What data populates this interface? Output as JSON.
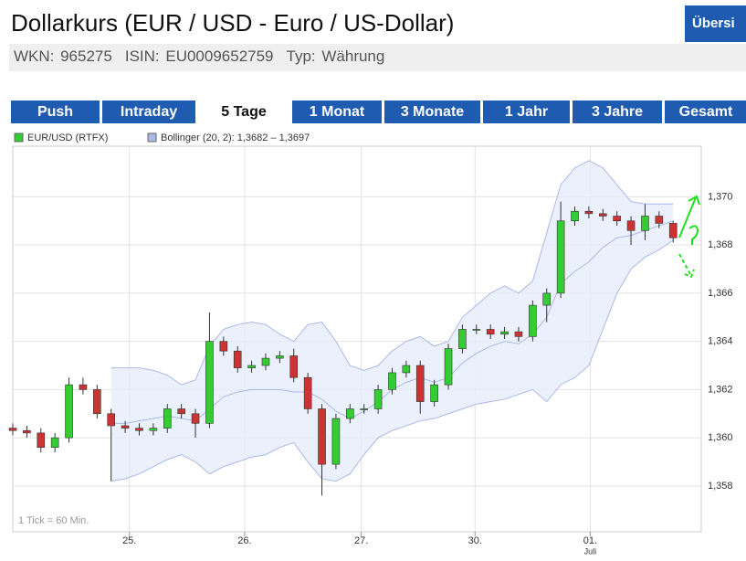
{
  "header": {
    "title": "Dollarkurs (EUR / USD - Euro / US-Dollar)",
    "button": "Übersi",
    "wkn": "WKN: 965275",
    "isin": "ISIN: EU0009652759",
    "typ": "Typ: Währung"
  },
  "tabs": [
    "Push",
    "Intraday",
    "5 Tage",
    "1 Monat",
    "3 Monate",
    "1 Jahr",
    "3 Jahre",
    "Gesamt"
  ],
  "active_tab": 2,
  "chart_data": {
    "type": "candlestick",
    "legend": [
      {
        "name": "EUR/USD (RTFX)",
        "color": "#33cc33"
      },
      {
        "name": "Bollinger (20, 2): 1,3682 – 1,3697",
        "color": "#aab8e8"
      }
    ],
    "note": "1 Tick = 60 Min.",
    "x": [
      0,
      1,
      2,
      3,
      4,
      5,
      6,
      7,
      8,
      9,
      10,
      11,
      12,
      13,
      14,
      15,
      16,
      17,
      18,
      19,
      20,
      21,
      22,
      23,
      24,
      25,
      26,
      27,
      28,
      29,
      30,
      31,
      32,
      33,
      34,
      35,
      36,
      37,
      38,
      39,
      40,
      41,
      42,
      43,
      44,
      45,
      46,
      47
    ],
    "open": [
      1.3604,
      1.3603,
      1.3602,
      1.3596,
      1.36,
      1.3622,
      1.362,
      1.361,
      1.3605,
      1.3604,
      1.3603,
      1.3604,
      1.3612,
      1.361,
      1.3606,
      1.364,
      1.3636,
      1.3629,
      1.363,
      1.3633,
      1.3634,
      1.3625,
      1.3612,
      1.3589,
      1.3608,
      1.3612,
      1.3612,
      1.362,
      1.3627,
      1.363,
      1.3615,
      1.3622,
      1.3637,
      1.3645,
      1.3645,
      1.3643,
      1.3644,
      1.3642,
      1.3655,
      1.366,
      1.369,
      1.3694,
      1.3693,
      1.3692,
      1.369,
      1.3686,
      1.3692,
      1.3689
    ],
    "high": [
      1.3606,
      1.3605,
      1.3604,
      1.3602,
      1.3625,
      1.3625,
      1.3622,
      1.3612,
      1.3607,
      1.3606,
      1.3606,
      1.3614,
      1.3614,
      1.3612,
      1.3652,
      1.3642,
      1.3638,
      1.3632,
      1.3635,
      1.3636,
      1.3637,
      1.3627,
      1.3614,
      1.361,
      1.3614,
      1.3614,
      1.3622,
      1.3629,
      1.3632,
      1.3632,
      1.3624,
      1.3639,
      1.3647,
      1.3647,
      1.3647,
      1.3646,
      1.3646,
      1.3657,
      1.3662,
      1.3698,
      1.3696,
      1.3696,
      1.3695,
      1.3694,
      1.3692,
      1.3697,
      1.3694,
      1.369
    ],
    "low": [
      1.3601,
      1.36,
      1.3594,
      1.3594,
      1.3598,
      1.3618,
      1.3608,
      1.3582,
      1.3602,
      1.3601,
      1.3601,
      1.3602,
      1.3608,
      1.36,
      1.3604,
      1.3634,
      1.3627,
      1.3627,
      1.3628,
      1.3631,
      1.3623,
      1.361,
      1.3576,
      1.3587,
      1.3606,
      1.361,
      1.361,
      1.3618,
      1.3625,
      1.361,
      1.3613,
      1.362,
      1.3635,
      1.3643,
      1.3641,
      1.3641,
      1.364,
      1.364,
      1.3648,
      1.3658,
      1.3688,
      1.3691,
      1.369,
      1.3688,
      1.368,
      1.3682,
      1.3687,
      1.3681
    ],
    "close": [
      1.3603,
      1.3602,
      1.3596,
      1.36,
      1.3622,
      1.362,
      1.361,
      1.3605,
      1.3604,
      1.3603,
      1.3604,
      1.3612,
      1.361,
      1.3606,
      1.364,
      1.3636,
      1.3629,
      1.363,
      1.3633,
      1.3634,
      1.3625,
      1.3612,
      1.3589,
      1.3608,
      1.3612,
      1.3612,
      1.362,
      1.3627,
      1.363,
      1.3615,
      1.3622,
      1.3637,
      1.3645,
      1.3645,
      1.3643,
      1.3644,
      1.3642,
      1.3655,
      1.366,
      1.369,
      1.3694,
      1.3693,
      1.3692,
      1.369,
      1.3686,
      1.3692,
      1.3689,
      1.3683
    ],
    "up_color": "#33cc33",
    "down_color": "#cc3333",
    "bollinger": {
      "color": "#aab8e8",
      "fill": "#e6eefb",
      "upper": [
        null,
        null,
        null,
        null,
        null,
        null,
        null,
        1.3629,
        1.3629,
        1.3629,
        1.3628,
        1.3626,
        1.3622,
        1.3624,
        1.3638,
        1.3645,
        1.3647,
        1.3648,
        1.3647,
        1.3643,
        1.364,
        1.3647,
        1.3648,
        1.364,
        1.363,
        1.3628,
        1.363,
        1.3636,
        1.364,
        1.3642,
        1.3638,
        1.364,
        1.365,
        1.3655,
        1.366,
        1.3663,
        1.366,
        1.3665,
        1.3685,
        1.3705,
        1.3712,
        1.3715,
        1.3712,
        1.3705,
        1.3698,
        1.3697,
        1.3697,
        1.3697
      ],
      "middle": [
        null,
        null,
        null,
        null,
        null,
        null,
        null,
        1.3606,
        1.3606,
        1.3607,
        1.3608,
        1.3609,
        1.3608,
        1.3607,
        1.3612,
        1.3617,
        1.3619,
        1.362,
        1.362,
        1.362,
        1.3619,
        1.3619,
        1.3616,
        1.3611,
        1.3608,
        1.3611,
        1.3615,
        1.362,
        1.3623,
        1.3625,
        1.3623,
        1.3625,
        1.3631,
        1.3635,
        1.3638,
        1.364,
        1.3639,
        1.3643,
        1.365,
        1.3664,
        1.3669,
        1.3673,
        1.3679,
        1.3683,
        1.3684,
        1.3686,
        1.3688,
        1.369
      ],
      "lower": [
        null,
        null,
        null,
        null,
        null,
        null,
        null,
        1.3582,
        1.3583,
        1.3585,
        1.3588,
        1.3591,
        1.3593,
        1.359,
        1.3585,
        1.3588,
        1.359,
        1.3592,
        1.3593,
        1.3596,
        1.3598,
        1.359,
        1.3583,
        1.3582,
        1.3585,
        1.3593,
        1.36,
        1.3603,
        1.3605,
        1.3607,
        1.3608,
        1.361,
        1.3612,
        1.3614,
        1.3615,
        1.3616,
        1.3618,
        1.362,
        1.3615,
        1.3622,
        1.3625,
        1.363,
        1.3645,
        1.366,
        1.367,
        1.3675,
        1.3678,
        1.3682
      ]
    },
    "xlim": [
      0,
      49
    ],
    "ylim": [
      1.3561,
      1.3721
    ],
    "yticks": [
      {
        "value": 1.358,
        "label": "1,358"
      },
      {
        "value": 1.36,
        "label": "1,360"
      },
      {
        "value": 1.362,
        "label": "1,362"
      },
      {
        "value": 1.364,
        "label": "1,364"
      },
      {
        "value": 1.366,
        "label": "1,366"
      },
      {
        "value": 1.368,
        "label": "1,368"
      },
      {
        "value": 1.37,
        "label": "1,370"
      }
    ],
    "xticks": [
      {
        "value": 8.3,
        "label": "25."
      },
      {
        "value": 16.5,
        "label": "26."
      },
      {
        "value": 24.8,
        "label": "27."
      },
      {
        "value": 32.9,
        "label": "30."
      },
      {
        "value": 41.1,
        "label": "01."
      }
    ],
    "month_label": "Juli",
    "grid": true
  }
}
